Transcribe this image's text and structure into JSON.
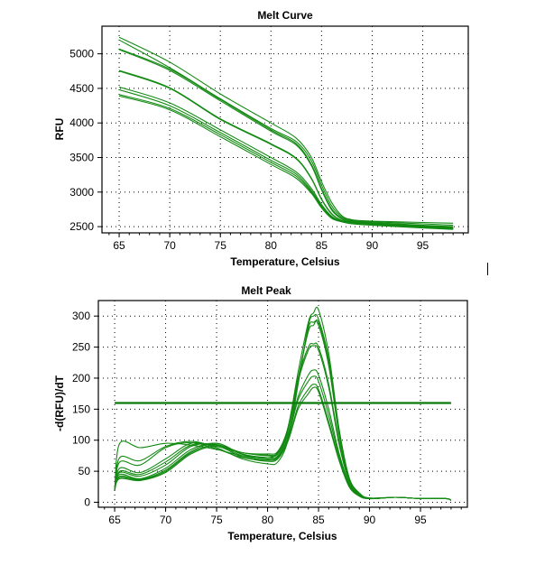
{
  "line_color": "#138a13",
  "chart_data": [
    {
      "type": "line",
      "title": "Melt Curve",
      "xlabel": "Temperature, Celsius",
      "ylabel": "RFU",
      "xlim": [
        63.3,
        99.5
      ],
      "ylim": [
        2410,
        5400
      ],
      "xticks": [
        65,
        70,
        75,
        80,
        85,
        90,
        95
      ],
      "yticks": [
        2500,
        3000,
        3500,
        4000,
        4500,
        5000
      ],
      "grid": true,
      "x": [
        65,
        70,
        75,
        80,
        82.5,
        84,
        85,
        86,
        87,
        88,
        90,
        95,
        98
      ],
      "series": [
        {
          "values": [
            5240,
            4880,
            4420,
            4000,
            3780,
            3500,
            3150,
            2850,
            2660,
            2600,
            2580,
            2560,
            2550
          ]
        },
        {
          "values": [
            5200,
            4800,
            4350,
            3920,
            3730,
            3450,
            3100,
            2800,
            2640,
            2590,
            2570,
            2540,
            2520
          ]
        },
        {
          "values": [
            5070,
            4780,
            4340,
            3900,
            3700,
            3400,
            3050,
            2760,
            2620,
            2580,
            2560,
            2520,
            2500
          ]
        },
        {
          "values": [
            5060,
            4760,
            4320,
            3880,
            3680,
            3380,
            3030,
            2740,
            2610,
            2570,
            2550,
            2510,
            2490
          ]
        },
        {
          "values": [
            4760,
            4510,
            4060,
            3700,
            3490,
            3200,
            2900,
            2690,
            2590,
            2560,
            2550,
            2510,
            2490
          ]
        },
        {
          "values": [
            4750,
            4500,
            4050,
            3690,
            3480,
            3190,
            2890,
            2680,
            2590,
            2560,
            2540,
            2500,
            2480
          ]
        },
        {
          "values": [
            4520,
            4290,
            3900,
            3500,
            3290,
            3050,
            2820,
            2650,
            2580,
            2560,
            2540,
            2500,
            2480
          ]
        },
        {
          "values": [
            4480,
            4250,
            3860,
            3460,
            3260,
            3020,
            2800,
            2640,
            2580,
            2550,
            2530,
            2490,
            2470
          ]
        },
        {
          "values": [
            4410,
            4210,
            3830,
            3430,
            3230,
            3000,
            2780,
            2630,
            2570,
            2550,
            2530,
            2490,
            2470
          ]
        },
        {
          "values": [
            4390,
            4190,
            3800,
            3400,
            3200,
            2980,
            2770,
            2620,
            2570,
            2540,
            2520,
            2480,
            2460
          ]
        }
      ]
    },
    {
      "type": "line",
      "title": "Melt Peak",
      "xlabel": "Temperature, Celsius",
      "ylabel": "-d(RFU)/dT",
      "xlim": [
        63.4,
        99.6
      ],
      "ylim": [
        -8,
        325
      ],
      "xticks": [
        65,
        70,
        75,
        80,
        85,
        90,
        95
      ],
      "yticks": [
        0,
        50,
        100,
        150,
        200,
        250,
        300
      ],
      "grid": true,
      "threshold": 160,
      "x": [
        65,
        65.5,
        67.5,
        70,
        72.5,
        75,
        77.5,
        80,
        81,
        82,
        83,
        84,
        84.5,
        85,
        86,
        87,
        88,
        89,
        90,
        92.5,
        95,
        97.5,
        98
      ],
      "series": [
        {
          "values": [
            20,
            95,
            88,
            95,
            92,
            85,
            75,
            72,
            80,
            120,
            210,
            290,
            305,
            310,
            240,
            120,
            40,
            15,
            7,
            8,
            6,
            6,
            3
          ]
        },
        {
          "values": [
            20,
            72,
            67,
            90,
            98,
            88,
            70,
            62,
            65,
            100,
            190,
            285,
            300,
            295,
            230,
            115,
            38,
            14,
            6,
            8,
            6,
            6,
            3
          ]
        },
        {
          "values": [
            20,
            65,
            60,
            88,
            96,
            86,
            72,
            68,
            72,
            105,
            195,
            280,
            290,
            285,
            220,
            110,
            36,
            13,
            6,
            8,
            6,
            6,
            3
          ]
        },
        {
          "values": [
            20,
            55,
            48,
            70,
            95,
            90,
            80,
            75,
            78,
            115,
            200,
            275,
            285,
            290,
            225,
            118,
            40,
            15,
            6,
            8,
            6,
            6,
            3
          ]
        },
        {
          "values": [
            20,
            50,
            45,
            65,
            92,
            92,
            80,
            78,
            82,
            120,
            200,
            250,
            255,
            250,
            190,
            100,
            35,
            13,
            6,
            8,
            6,
            6,
            3
          ]
        },
        {
          "values": [
            20,
            48,
            42,
            60,
            90,
            93,
            80,
            76,
            80,
            118,
            195,
            245,
            252,
            245,
            185,
            95,
            33,
            12,
            6,
            8,
            6,
            6,
            3
          ]
        },
        {
          "values": [
            20,
            45,
            38,
            55,
            85,
            95,
            78,
            72,
            75,
            110,
            170,
            205,
            213,
            205,
            150,
            80,
            30,
            11,
            6,
            8,
            6,
            6,
            3
          ]
        },
        {
          "values": [
            20,
            42,
            37,
            52,
            82,
            95,
            77,
            70,
            73,
            105,
            165,
            195,
            203,
            195,
            140,
            75,
            28,
            10,
            6,
            8,
            6,
            6,
            3
          ]
        },
        {
          "values": [
            20,
            40,
            36,
            50,
            80,
            92,
            75,
            68,
            72,
            100,
            155,
            182,
            190,
            182,
            130,
            70,
            26,
            10,
            6,
            8,
            6,
            6,
            3
          ]
        },
        {
          "values": [
            20,
            38,
            35,
            48,
            78,
            90,
            73,
            66,
            70,
            98,
            150,
            175,
            185,
            178,
            125,
            68,
            25,
            10,
            6,
            8,
            6,
            6,
            3
          ]
        }
      ]
    }
  ]
}
